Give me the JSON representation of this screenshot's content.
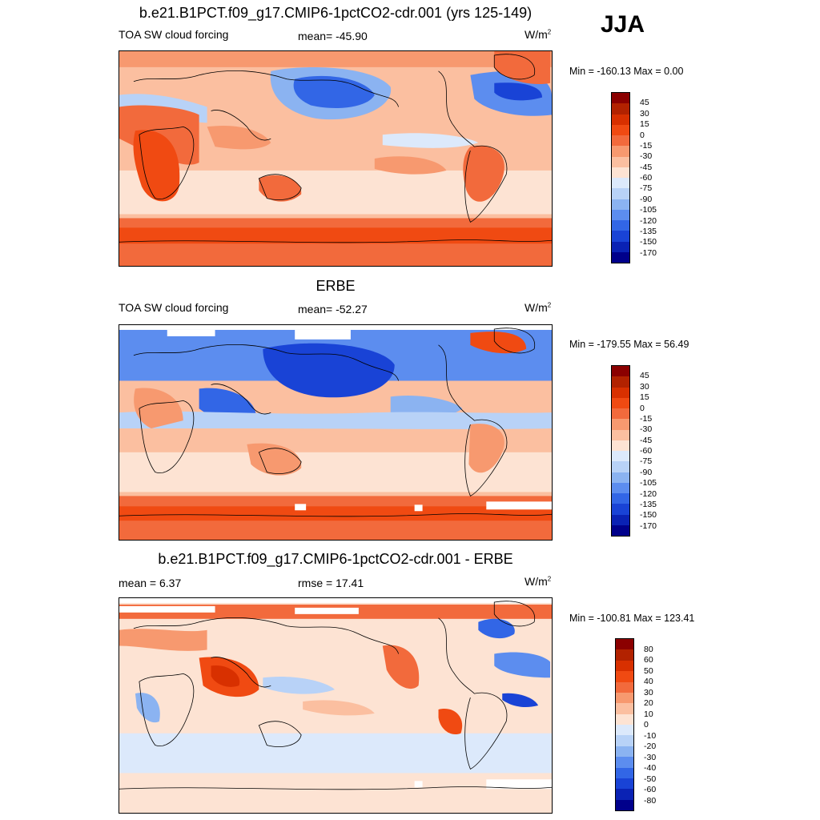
{
  "season": "JJA",
  "colors": {
    "abs_scale": [
      "#8b0000",
      "#b22200",
      "#d83000",
      "#f04a12",
      "#f26a3c",
      "#f7996f",
      "#fbbfa0",
      "#fde3d3",
      "#dce9fb",
      "#b8d2f7",
      "#8bb3f1",
      "#5c8def",
      "#3266e6",
      "#1943d6",
      "#0a22b4",
      "#00008b"
    ],
    "diff_scale": [
      "#8b0000",
      "#b22200",
      "#d83000",
      "#f04a12",
      "#f26a3c",
      "#f7996f",
      "#fbbfa0",
      "#fde3d3",
      "#dce9fb",
      "#b8d2f7",
      "#8bb3f1",
      "#5c8def",
      "#3266e6",
      "#1943d6",
      "#0a22b4",
      "#00008b"
    ]
  },
  "panels": [
    {
      "title": "b.e21.B1PCT.f09_g17.CMIP6-1pctCO2-cdr.001 (yrs 125-149)",
      "left_label": "TOA SW cloud forcing",
      "center_label": "mean= -45.90",
      "units": "W/m",
      "units_sup": "2",
      "minmax": "Min = -160.13 Max =   0.00",
      "colorbar_labels": [
        "45",
        "30",
        "15",
        "0",
        "-15",
        "-30",
        "-45",
        "-60",
        "-75",
        "-90",
        "-105",
        "-120",
        "-135",
        "-150",
        "-170"
      ]
    },
    {
      "title": "ERBE",
      "left_label": "TOA SW cloud forcing",
      "center_label": "mean= -52.27",
      "units": "W/m",
      "units_sup": "2",
      "minmax": "Min = -179.55 Max =  56.49",
      "colorbar_labels": [
        "45",
        "30",
        "15",
        "0",
        "-15",
        "-30",
        "-45",
        "-60",
        "-75",
        "-90",
        "-105",
        "-120",
        "-135",
        "-150",
        "-170"
      ]
    },
    {
      "title": "b.e21.B1PCT.f09_g17.CMIP6-1pctCO2-cdr.001 - ERBE",
      "left_label": "mean =   6.37",
      "center_label": "rmse =  17.41",
      "units": "W/m",
      "units_sup": "2",
      "minmax": "Min = -100.81 Max = 123.41",
      "colorbar_labels": [
        "80",
        "60",
        "50",
        "40",
        "30",
        "20",
        "10",
        "0",
        "-10",
        "-20",
        "-30",
        "-40",
        "-50",
        "-60",
        "-80"
      ]
    }
  ]
}
